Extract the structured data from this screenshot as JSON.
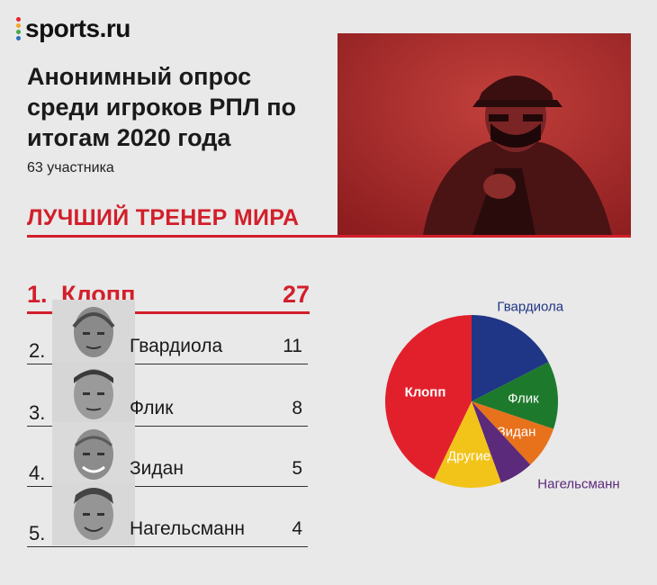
{
  "brand": {
    "name": "sports.ru",
    "dot_colors": [
      "#e8232b",
      "#f5a623",
      "#4aa64a",
      "#2b6fc2"
    ]
  },
  "headline": "Анонимный опрос среди игроков РПЛ по итогам 2020 года",
  "participants": "63 участника",
  "section_title": "ЛУЧШИЙ ТРЕНЕР МИРА",
  "ranking": [
    {
      "rank": "1.",
      "name": "Клопп",
      "votes": "27"
    },
    {
      "rank": "2.",
      "name": "Гвардиола",
      "votes": "11"
    },
    {
      "rank": "3.",
      "name": "Флик",
      "votes": "8"
    },
    {
      "rank": "4.",
      "name": "Зидан",
      "votes": "5"
    },
    {
      "rank": "5.",
      "name": "Нагельсманн",
      "votes": "4"
    }
  ],
  "colors": {
    "accent": "#d21f2b",
    "background": "#e9e9e9"
  },
  "chart_data": {
    "type": "pie",
    "categories": [
      "Гвардиола",
      "Флик",
      "Зидан",
      "Нагельсманн",
      "Другие",
      "Клопп"
    ],
    "values": [
      11,
      8,
      5,
      4,
      8,
      27
    ],
    "colors": [
      "#1f3585",
      "#1d7a2c",
      "#e8711c",
      "#5b2a7a",
      "#f2c319",
      "#e2202c"
    ],
    "label_colors": [
      "#1f3585",
      "#ffffff",
      "#ffffff",
      "#5b2a7a",
      "#ffffff",
      "#ffffff"
    ],
    "title": ""
  }
}
